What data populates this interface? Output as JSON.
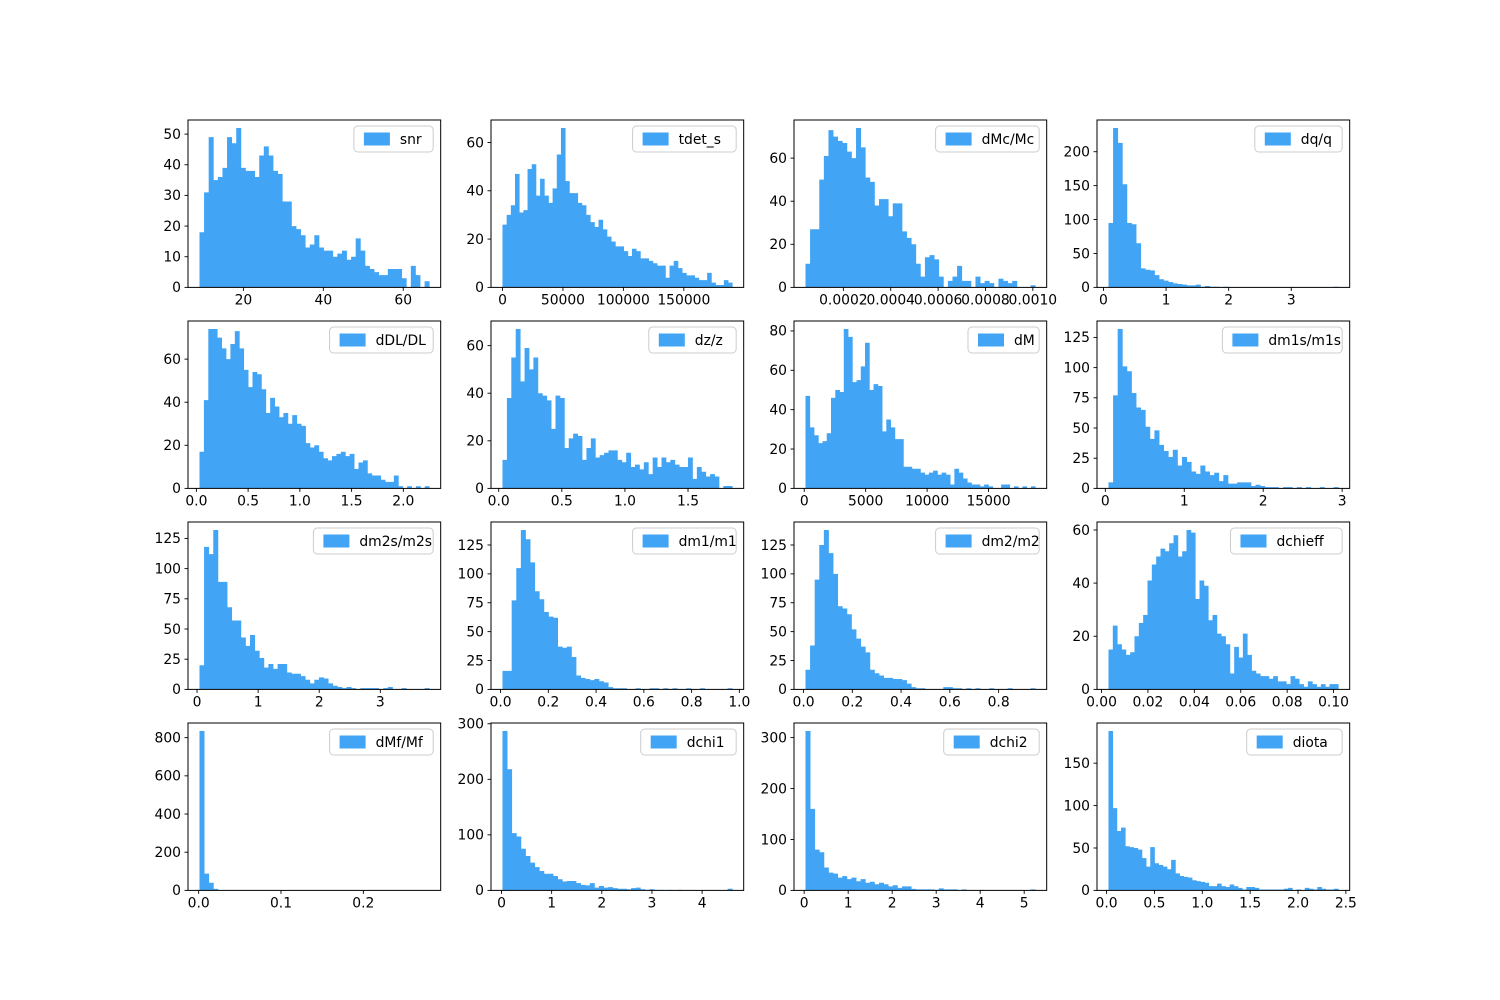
{
  "figure": {
    "title": "",
    "background_color": "#ffffff",
    "bar_color": "#41a4f4",
    "spine_color": "#000000",
    "tick_label_color": "#000000",
    "legend_border_color": "#cccccc",
    "legend_background_color": "#ffffff",
    "grid": "off",
    "rows": 4,
    "cols": 4
  },
  "chart_data": [
    {
      "type": "bar",
      "subtype": "histogram",
      "legend_label": "snr",
      "legend_position": "upper right",
      "bin_min": 9.0,
      "bin_max": 66.5,
      "values": [
        18,
        31,
        49,
        35,
        36,
        39,
        49,
        47,
        52,
        39,
        38,
        38,
        36,
        43,
        46,
        43,
        38,
        37,
        28,
        28,
        20,
        19,
        17,
        13,
        14,
        17,
        13,
        12,
        12,
        10,
        11,
        12,
        9,
        10,
        16,
        12,
        7,
        6,
        5,
        4,
        4,
        6,
        6,
        6,
        3,
        0,
        7,
        4,
        0,
        2
      ],
      "yticks": [
        0,
        10,
        20,
        30,
        40,
        50
      ],
      "xtick_vals": [
        20,
        40,
        60
      ],
      "xtick_labels": [
        "20",
        "40",
        "60"
      ]
    },
    {
      "type": "bar",
      "subtype": "histogram",
      "legend_label": "tdet_s",
      "legend_position": "upper right",
      "bin_min": 0,
      "bin_max": 190000,
      "values": [
        26,
        30,
        34,
        47,
        31,
        32,
        49,
        51,
        38,
        45,
        38,
        35,
        41,
        55,
        66,
        44,
        39,
        39,
        35,
        34,
        30,
        27,
        25,
        28,
        24,
        21,
        19,
        17,
        17,
        15,
        13,
        16,
        15,
        12,
        12,
        11,
        10,
        9,
        9,
        4,
        9,
        11,
        8,
        6,
        5,
        5,
        4,
        3,
        3,
        6,
        2,
        1,
        1,
        3,
        2
      ],
      "yticks": [
        0,
        20,
        40,
        60
      ],
      "xtick_vals": [
        0,
        50000,
        100000,
        150000
      ],
      "xtick_labels": [
        "0",
        "50000",
        "100000",
        "150000"
      ]
    },
    {
      "type": "bar",
      "subtype": "histogram",
      "legend_label": "dMc/Mc",
      "legend_position": "upper right",
      "bin_min": 4e-05,
      "bin_max": 0.00101,
      "values": [
        11,
        27,
        27,
        50,
        61,
        73,
        70,
        68,
        67,
        63,
        60,
        74,
        65,
        51,
        49,
        38,
        41,
        41,
        33,
        39,
        39,
        26,
        23,
        20,
        11,
        5,
        14,
        15,
        13,
        5,
        0,
        3,
        5,
        10,
        3,
        3,
        0,
        5,
        2,
        3,
        2,
        0,
        4,
        3,
        2,
        3,
        0,
        0,
        0,
        1
      ],
      "yticks": [
        0,
        20,
        40,
        60
      ],
      "xtick_vals": [
        0.0002,
        0.0004,
        0.0006,
        0.0008,
        0.001
      ],
      "xtick_labels": [
        "0.0002",
        "0.0004",
        "0.0006",
        "0.0008",
        "0.0010"
      ]
    },
    {
      "type": "bar",
      "subtype": "histogram",
      "legend_label": "dq/q",
      "legend_position": "upper right",
      "bin_min": 0.08,
      "bin_max": 3.75,
      "values": [
        95,
        235,
        213,
        152,
        95,
        93,
        65,
        28,
        26,
        25,
        18,
        12,
        10,
        8,
        6,
        5,
        4,
        3,
        3,
        4,
        1,
        2,
        1,
        1,
        0,
        1,
        0,
        0,
        0,
        0,
        0,
        0,
        0,
        0,
        0,
        0,
        0,
        0,
        0,
        0,
        0,
        0,
        0,
        0,
        0,
        0,
        0,
        0,
        0,
        1
      ],
      "yticks": [
        0,
        50,
        100,
        150,
        200
      ],
      "xtick_vals": [
        0,
        1,
        2,
        3
      ],
      "xtick_labels": [
        "0",
        "1",
        "2",
        "3"
      ]
    },
    {
      "type": "bar",
      "subtype": "histogram",
      "legend_label": "dDL/DL",
      "legend_position": "upper right",
      "bin_min": 0.03,
      "bin_max": 2.25,
      "values": [
        17,
        41,
        74,
        74,
        70,
        65,
        60,
        67,
        73,
        65,
        55,
        47,
        54,
        53,
        46,
        35,
        42,
        38,
        33,
        35,
        30,
        34,
        30,
        29,
        21,
        19,
        20,
        17,
        14,
        13,
        15,
        16,
        17,
        15,
        16,
        9,
        12,
        13,
        7,
        6,
        6,
        4,
        3,
        3,
        6,
        1,
        0,
        1,
        0,
        1,
        0,
        1
      ],
      "yticks": [
        0,
        20,
        40,
        60
      ],
      "xtick_vals": [
        0.0,
        0.5,
        1.0,
        1.5,
        2.0
      ],
      "xtick_labels": [
        "0.0",
        "0.5",
        "1.0",
        "1.5",
        "2.0"
      ]
    },
    {
      "type": "bar",
      "subtype": "histogram",
      "legend_label": "dz/z",
      "legend_position": "upper right",
      "bin_min": 0.03,
      "bin_max": 1.85,
      "values": [
        12,
        38,
        55,
        67,
        45,
        59,
        50,
        55,
        40,
        39,
        37,
        25,
        39,
        38,
        17,
        21,
        23,
        22,
        12,
        17,
        21,
        13,
        14,
        15,
        16,
        16,
        12,
        11,
        15,
        9,
        10,
        8,
        11,
        6,
        13,
        9,
        13,
        11,
        12,
        10,
        9,
        9,
        13,
        4,
        9,
        7,
        5,
        6,
        5,
        0,
        1,
        1
      ],
      "yticks": [
        0,
        20,
        40,
        60
      ],
      "xtick_vals": [
        0.0,
        0.5,
        1.0,
        1.5
      ],
      "xtick_labels": [
        "0.0",
        "0.5",
        "1.0",
        "1.5"
      ]
    },
    {
      "type": "bar",
      "subtype": "histogram",
      "legend_label": "dM",
      "legend_position": "upper right",
      "bin_min": 100,
      "bin_max": 18800,
      "values": [
        47,
        31,
        27,
        23,
        24,
        28,
        46,
        50,
        49,
        81,
        77,
        54,
        55,
        62,
        74,
        50,
        53,
        52,
        29,
        35,
        31,
        25,
        25,
        11,
        11,
        10,
        10,
        8,
        7,
        8,
        9,
        7,
        8,
        7,
        2,
        10,
        8,
        5,
        3,
        2,
        2,
        1,
        2,
        1,
        0,
        0,
        2,
        2,
        0,
        1,
        0,
        1,
        0,
        1
      ],
      "yticks": [
        0,
        20,
        40,
        60,
        80
      ],
      "xtick_vals": [
        0,
        5000,
        10000,
        15000
      ],
      "xtick_labels": [
        "0",
        "5000",
        "10000",
        "15000"
      ]
    },
    {
      "type": "bar",
      "subtype": "histogram",
      "legend_label": "dm1s/m1s",
      "legend_position": "upper right",
      "bin_min": 0.04,
      "bin_max": 2.95,
      "values": [
        5,
        77,
        132,
        101,
        97,
        79,
        67,
        65,
        51,
        41,
        48,
        36,
        31,
        26,
        32,
        19,
        26,
        22,
        14,
        12,
        19,
        14,
        11,
        13,
        6,
        11,
        4,
        4,
        5,
        5,
        5,
        2,
        3,
        2,
        1,
        1,
        1,
        0,
        1,
        1,
        0,
        1,
        0,
        1,
        0,
        0,
        1,
        0,
        0,
        1
      ],
      "yticks": [
        0,
        25,
        50,
        75,
        100,
        125
      ],
      "xtick_vals": [
        0,
        1,
        2,
        3
      ],
      "xtick_labels": [
        "0",
        "1",
        "2",
        "3"
      ]
    },
    {
      "type": "bar",
      "subtype": "histogram",
      "legend_label": "dm2s/m2s",
      "legend_position": "upper right",
      "bin_min": 0.04,
      "bin_max": 3.8,
      "values": [
        20,
        118,
        112,
        132,
        89,
        89,
        68,
        57,
        57,
        43,
        36,
        45,
        32,
        26,
        18,
        21,
        17,
        21,
        21,
        14,
        13,
        13,
        11,
        8,
        5,
        8,
        10,
        9,
        5,
        3,
        2,
        1,
        2,
        1,
        0,
        1,
        1,
        1,
        1,
        0,
        1,
        2,
        0,
        0,
        1,
        0,
        0,
        0,
        0,
        1
      ],
      "yticks": [
        0,
        25,
        50,
        75,
        100,
        125
      ],
      "xtick_vals": [
        0,
        1,
        2,
        3
      ],
      "xtick_labels": [
        "0",
        "1",
        "2",
        "3"
      ]
    },
    {
      "type": "bar",
      "subtype": "histogram",
      "legend_label": "dm1/m1",
      "legend_position": "upper right",
      "bin_min": 0.008,
      "bin_max": 0.97,
      "values": [
        16,
        16,
        77,
        105,
        138,
        130,
        110,
        85,
        78,
        67,
        63,
        62,
        37,
        36,
        37,
        28,
        12,
        10,
        9,
        8,
        9,
        7,
        6,
        2,
        1,
        1,
        1,
        0,
        0,
        1,
        0,
        0,
        1,
        1,
        0,
        1,
        0,
        1,
        0,
        0,
        1,
        0,
        0,
        1,
        0,
        0,
        0,
        0,
        0,
        1
      ],
      "yticks": [
        0,
        25,
        50,
        75,
        100,
        125
      ],
      "xtick_vals": [
        0.0,
        0.2,
        0.4,
        0.6,
        0.8,
        1.0
      ],
      "xtick_labels": [
        "0.0",
        "0.2",
        "0.4",
        "0.6",
        "0.8",
        "1.0"
      ]
    },
    {
      "type": "bar",
      "subtype": "histogram",
      "legend_label": "dm2/m2",
      "legend_position": "upper right",
      "bin_min": 0.008,
      "bin_max": 0.95,
      "values": [
        17,
        38,
        95,
        125,
        138,
        118,
        100,
        72,
        70,
        65,
        52,
        44,
        37,
        32,
        17,
        14,
        12,
        10,
        10,
        9,
        9,
        8,
        5,
        2,
        1,
        1,
        0,
        0,
        0,
        0,
        2,
        2,
        1,
        1,
        0,
        1,
        0,
        1,
        0,
        0,
        1,
        0,
        0,
        0,
        1,
        0,
        0,
        0,
        0,
        1
      ],
      "yticks": [
        0,
        25,
        50,
        75,
        100,
        125
      ],
      "xtick_vals": [
        0.0,
        0.2,
        0.4,
        0.6,
        0.8
      ],
      "xtick_labels": [
        "0.0",
        "0.2",
        "0.4",
        "0.6",
        "0.8"
      ]
    },
    {
      "type": "bar",
      "subtype": "histogram",
      "legend_label": "dchieff",
      "legend_position": "upper right",
      "bin_min": 0.003,
      "bin_max": 0.102,
      "values": [
        15,
        24,
        17,
        15,
        13,
        14,
        20,
        25,
        28,
        41,
        47,
        50,
        53,
        52,
        55,
        58,
        50,
        52,
        60,
        59,
        34,
        41,
        39,
        26,
        28,
        21,
        20,
        17,
        6,
        16,
        12,
        21,
        13,
        7,
        6,
        5,
        5,
        4,
        5,
        3,
        3,
        2,
        5,
        4,
        2,
        1,
        3,
        2,
        1,
        2,
        1,
        2,
        2
      ],
      "yticks": [
        0,
        20,
        40,
        60
      ],
      "xtick_vals": [
        0.0,
        0.02,
        0.04,
        0.06,
        0.08,
        0.1
      ],
      "xtick_labels": [
        "0.00",
        "0.02",
        "0.04",
        "0.06",
        "0.08",
        "0.10"
      ]
    },
    {
      "type": "bar",
      "subtype": "histogram",
      "legend_label": "dMf/Mf",
      "legend_position": "upper right",
      "bin_min": 0.001,
      "bin_max": 0.28,
      "values": [
        835,
        88,
        40,
        8,
        2,
        1,
        0,
        0,
        0,
        0,
        0,
        0,
        0,
        0,
        0,
        0,
        0,
        0,
        0,
        0,
        0,
        0,
        0,
        0,
        0,
        0,
        0,
        0,
        0,
        0,
        0,
        0,
        0,
        0,
        0,
        0,
        0,
        0,
        0,
        0,
        0,
        0,
        0,
        0,
        0,
        0,
        0,
        0,
        0,
        1
      ],
      "yticks": [
        0,
        200,
        400,
        600,
        800
      ],
      "xtick_vals": [
        0.0,
        0.1,
        0.2
      ],
      "xtick_labels": [
        "0.0",
        "0.1",
        "0.2"
      ]
    },
    {
      "type": "bar",
      "subtype": "histogram",
      "legend_label": "dchi1",
      "legend_position": "upper right",
      "bin_min": 0.02,
      "bin_max": 4.6,
      "values": [
        287,
        218,
        103,
        97,
        75,
        62,
        50,
        42,
        35,
        30,
        30,
        26,
        20,
        16,
        17,
        17,
        13,
        10,
        9,
        13,
        5,
        8,
        5,
        6,
        4,
        3,
        3,
        2,
        4,
        5,
        2,
        1,
        2,
        1,
        1,
        0,
        1,
        0,
        1,
        0,
        0,
        0,
        0,
        0,
        0,
        0,
        0,
        0,
        0,
        3
      ],
      "yticks": [
        0,
        100,
        200,
        300
      ],
      "xtick_vals": [
        0,
        1,
        2,
        3,
        4
      ],
      "xtick_labels": [
        "0",
        "1",
        "2",
        "3",
        "4"
      ]
    },
    {
      "type": "bar",
      "subtype": "histogram",
      "legend_label": "dchi2",
      "legend_position": "upper right",
      "bin_min": 0.03,
      "bin_max": 5.25,
      "values": [
        313,
        160,
        80,
        75,
        45,
        35,
        33,
        25,
        28,
        22,
        25,
        18,
        22,
        15,
        17,
        12,
        15,
        12,
        8,
        10,
        5,
        8,
        8,
        3,
        2,
        2,
        2,
        2,
        1,
        4,
        2,
        2,
        2,
        0,
        2,
        0,
        0,
        0,
        1,
        0,
        0,
        0,
        0,
        0,
        0,
        0,
        0,
        0,
        0,
        2
      ],
      "yticks": [
        0,
        100,
        200,
        300
      ],
      "xtick_vals": [
        0,
        1,
        2,
        3,
        4,
        5
      ],
      "xtick_labels": [
        "0",
        "1",
        "2",
        "3",
        "4",
        "5"
      ]
    },
    {
      "type": "bar",
      "subtype": "histogram",
      "legend_label": "diota",
      "legend_position": "upper right",
      "bin_min": 0.02,
      "bin_max": 2.42,
      "values": [
        188,
        97,
        70,
        74,
        52,
        51,
        50,
        48,
        38,
        28,
        51,
        32,
        30,
        28,
        25,
        36,
        20,
        17,
        16,
        15,
        12,
        11,
        10,
        9,
        5,
        5,
        8,
        5,
        4,
        7,
        5,
        3,
        1,
        4,
        4,
        3,
        1,
        1,
        1,
        1,
        1,
        1,
        2,
        3,
        0,
        1,
        0,
        3,
        2,
        1,
        4,
        2,
        1,
        1,
        2
      ],
      "yticks": [
        0,
        50,
        100,
        150
      ],
      "xtick_vals": [
        0.0,
        0.5,
        1.0,
        1.5,
        2.0,
        2.5
      ],
      "xtick_labels": [
        "0.0",
        "0.5",
        "1.0",
        "1.5",
        "2.0",
        "2.5"
      ]
    }
  ]
}
